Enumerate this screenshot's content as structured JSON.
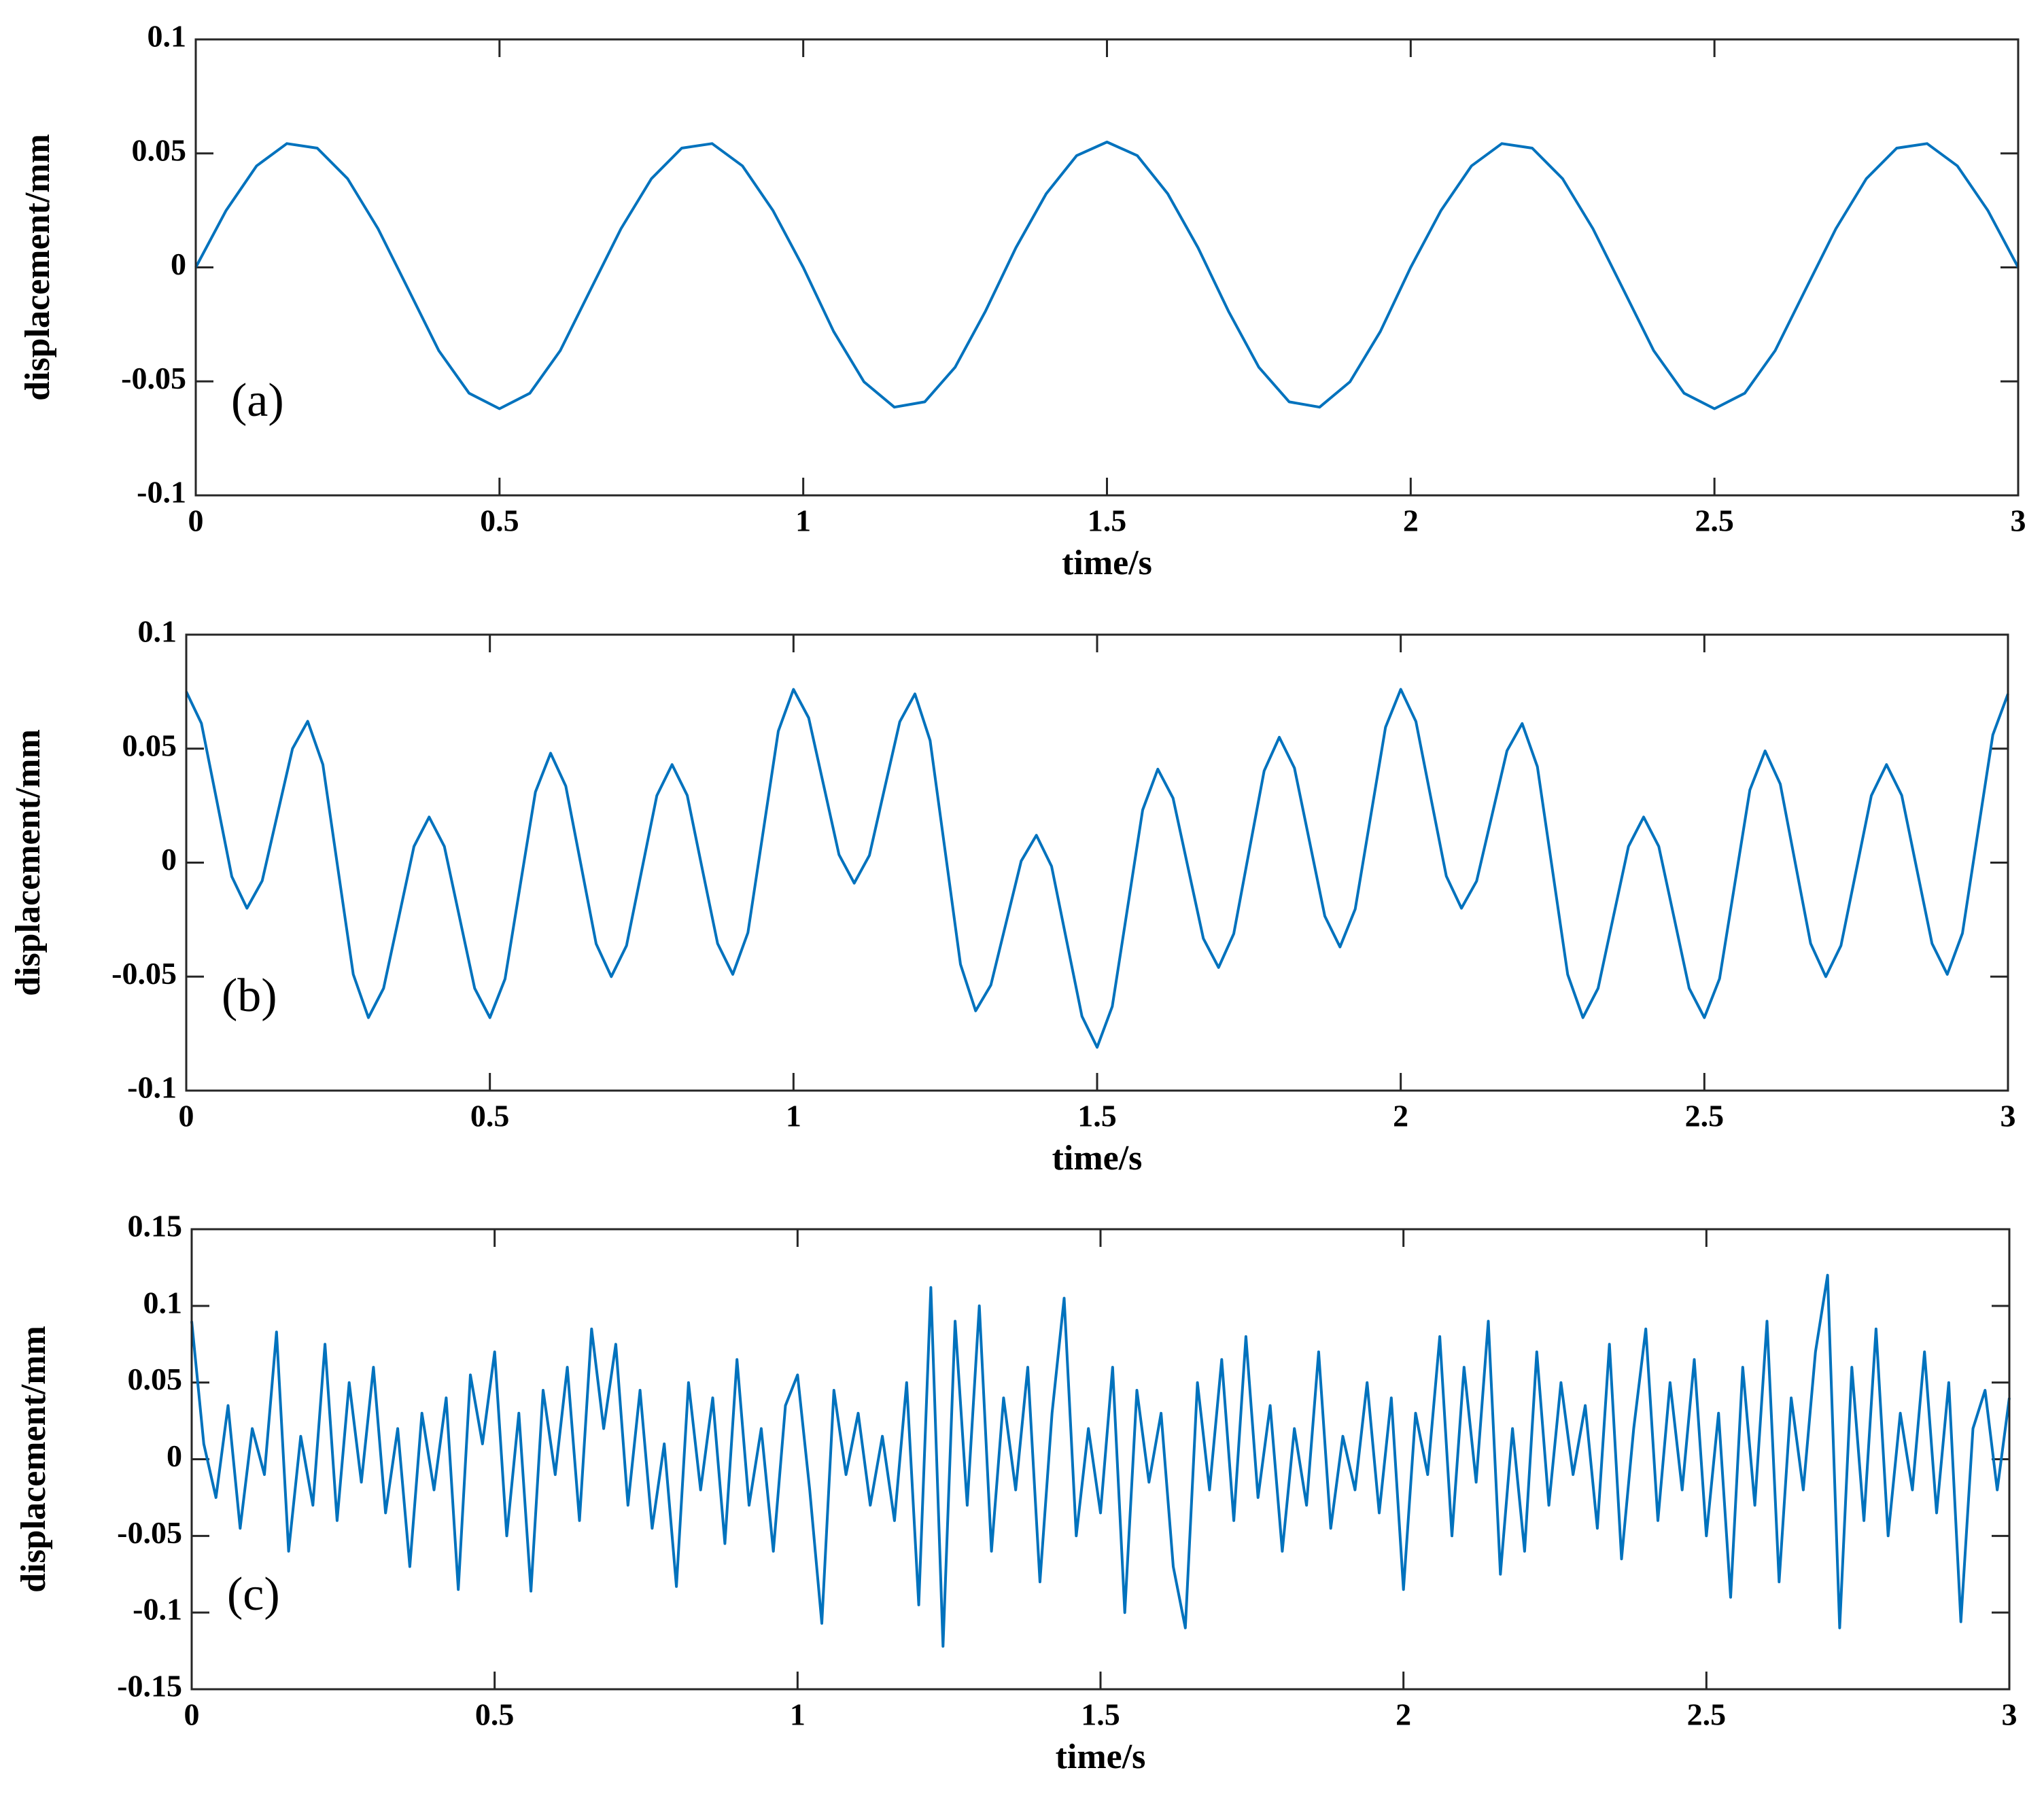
{
  "chart_data": [
    {
      "type": "line",
      "annotation": "(a)",
      "xlabel": "time/s",
      "ylabel": "displacement/mm",
      "color": "#0072bd",
      "xlim": [
        0,
        3
      ],
      "xticks": [
        0,
        0.5,
        1,
        1.5,
        2,
        2.5,
        3
      ],
      "ylim": [
        -0.1,
        0.1
      ],
      "yticks": [
        -0.1,
        -0.05,
        0,
        0.05,
        0.1
      ],
      "x": [
        0,
        0.05,
        0.1,
        0.15,
        0.2,
        0.25,
        0.3,
        0.35,
        0.4,
        0.45,
        0.5,
        0.55,
        0.6,
        0.65,
        0.7,
        0.75,
        0.8,
        0.85,
        0.9,
        0.95,
        1,
        1.05,
        1.1,
        1.15,
        1.2,
        1.25,
        1.3,
        1.35,
        1.4,
        1.45,
        1.5,
        1.55,
        1.6,
        1.65,
        1.7,
        1.75,
        1.8,
        1.85,
        1.9,
        1.95,
        2,
        2.05,
        2.1,
        2.15,
        2.2,
        2.25,
        2.3,
        2.35,
        2.4,
        2.45,
        2.5,
        2.55,
        2.6,
        2.65,
        2.7,
        2.75,
        2.8,
        2.85,
        2.9,
        2.95,
        3
      ],
      "values": [
        0,
        0.025,
        0.0445,
        0.0543,
        0.0523,
        0.0389,
        0.017,
        -0.0097,
        -0.0365,
        -0.0552,
        -0.062,
        -0.0552,
        -0.0365,
        -0.0097,
        0.017,
        0.0389,
        0.0523,
        0.0543,
        0.0445,
        0.025,
        0,
        -0.0281,
        -0.0502,
        -0.0613,
        -0.059,
        -0.0438,
        -0.0192,
        0.0086,
        0.0323,
        0.049,
        0.055,
        0.049,
        0.0323,
        0.0086,
        -0.0192,
        -0.0438,
        -0.059,
        -0.0613,
        -0.0502,
        -0.0281,
        0,
        0.025,
        0.0445,
        0.0543,
        0.0523,
        0.0389,
        0.017,
        -0.0097,
        -0.0365,
        -0.0552,
        -0.062,
        -0.0552,
        -0.0365,
        -0.0097,
        0.017,
        0.0389,
        0.0523,
        0.0543,
        0.0445,
        0.025,
        0
      ]
    },
    {
      "type": "line",
      "annotation": "(b)",
      "xlabel": "time/s",
      "ylabel": "displacement/mm",
      "color": "#0072bd",
      "xlim": [
        0,
        3
      ],
      "xticks": [
        0,
        0.5,
        1,
        1.5,
        2,
        2.5,
        3
      ],
      "ylim": [
        -0.1,
        0.1
      ],
      "yticks": [
        -0.1,
        -0.05,
        0,
        0.05,
        0.1
      ],
      "x": [
        0,
        0.025,
        0.05,
        0.075,
        0.1,
        0.125,
        0.15,
        0.175,
        0.2,
        0.225,
        0.25,
        0.275,
        0.3,
        0.325,
        0.35,
        0.375,
        0.4,
        0.425,
        0.45,
        0.475,
        0.5,
        0.525,
        0.55,
        0.575,
        0.6,
        0.625,
        0.65,
        0.675,
        0.7,
        0.725,
        0.75,
        0.775,
        0.8,
        0.825,
        0.85,
        0.875,
        0.9,
        0.925,
        0.95,
        0.975,
        1,
        1.025,
        1.05,
        1.075,
        1.1,
        1.125,
        1.15,
        1.175,
        1.2,
        1.225,
        1.25,
        1.275,
        1.3,
        1.325,
        1.35,
        1.375,
        1.4,
        1.425,
        1.45,
        1.475,
        1.5,
        1.525,
        1.55,
        1.575,
        1.6,
        1.625,
        1.65,
        1.675,
        1.7,
        1.725,
        1.75,
        1.775,
        1.8,
        1.825,
        1.85,
        1.875,
        1.9,
        1.925,
        1.95,
        1.975,
        2,
        2.025,
        2.05,
        2.075,
        2.1,
        2.125,
        2.15,
        2.175,
        2.2,
        2.225,
        2.25,
        2.275,
        2.3,
        2.325,
        2.35,
        2.375,
        2.4,
        2.425,
        2.45,
        2.475,
        2.5,
        2.525,
        2.55,
        2.575,
        2.6,
        2.625,
        2.65,
        2.675,
        2.7,
        2.725,
        2.75,
        2.775,
        2.8,
        2.825,
        2.85,
        2.875,
        2.9,
        2.925,
        2.95,
        2.975,
        3
      ],
      "values": [
        0.075,
        0.0611,
        0.0275,
        -0.0061,
        -0.02,
        -0.008,
        0.021,
        0.05,
        0.062,
        0.043,
        -0.003,
        -0.049,
        -0.068,
        -0.0551,
        -0.024,
        0.0071,
        0.02,
        0.0071,
        -0.024,
        -0.0551,
        -0.068,
        -0.051,
        -0.01,
        0.031,
        0.048,
        0.0336,
        -0.001,
        -0.0356,
        -0.05,
        -0.0364,
        -0.0035,
        0.0294,
        0.043,
        0.0295,
        -0.003,
        -0.0355,
        -0.049,
        -0.0307,
        0.0135,
        0.0577,
        0.076,
        0.0635,
        0.0335,
        0.0035,
        -0.009,
        0.0032,
        0.0325,
        0.0618,
        0.074,
        0.0536,
        0.0045,
        -0.0446,
        -0.065,
        -0.0537,
        -0.0265,
        0.0007,
        0.012,
        -0.0016,
        -0.0345,
        -0.0674,
        -0.081,
        -0.0631,
        -0.02,
        0.0231,
        0.041,
        0.0283,
        -0.0025,
        -0.0333,
        -0.046,
        -0.0312,
        0.0045,
        0.0402,
        0.055,
        0.0415,
        0.009,
        -0.0235,
        -0.037,
        -0.0204,
        0.0195,
        0.0594,
        0.076,
        0.0619,
        0.028,
        -0.0059,
        -0.02,
        -0.0081,
        0.0205,
        0.0491,
        0.061,
        0.0421,
        -0.0035,
        -0.0491,
        -0.068,
        -0.0551,
        -0.024,
        0.0071,
        0.02,
        0.0071,
        -0.024,
        -0.0551,
        -0.068,
        -0.0509,
        -0.0095,
        0.0319,
        0.049,
        0.0345,
        -0.0005,
        -0.0355,
        -0.05,
        -0.0364,
        -0.0035,
        0.0294,
        0.043,
        0.0295,
        -0.003,
        -0.0355,
        -0.049,
        -0.031,
        0.0125,
        0.056,
        0.074
      ]
    },
    {
      "type": "line",
      "annotation": "(c)",
      "xlabel": "time/s",
      "ylabel": "displacement/mm",
      "color": "#0072bd",
      "xlim": [
        0,
        3
      ],
      "xticks": [
        0,
        0.5,
        1,
        1.5,
        2,
        2.5,
        3
      ],
      "ylim": [
        -0.15,
        0.15
      ],
      "yticks": [
        -0.15,
        -0.1,
        -0.05,
        0,
        0.05,
        0.1,
        0.15
      ],
      "x": [
        0,
        0.02,
        0.04,
        0.06,
        0.08,
        0.1,
        0.12,
        0.14,
        0.16,
        0.18,
        0.2,
        0.22,
        0.24,
        0.26,
        0.28,
        0.3,
        0.32,
        0.34,
        0.36,
        0.38,
        0.4,
        0.42,
        0.44,
        0.46,
        0.48,
        0.5,
        0.52,
        0.54,
        0.56,
        0.58,
        0.6,
        0.62,
        0.64,
        0.66,
        0.68,
        0.7,
        0.72,
        0.74,
        0.76,
        0.78,
        0.8,
        0.82,
        0.84,
        0.86,
        0.88,
        0.9,
        0.92,
        0.94,
        0.96,
        0.98,
        1,
        1.02,
        1.04,
        1.06,
        1.08,
        1.1,
        1.12,
        1.14,
        1.16,
        1.18,
        1.2,
        1.22,
        1.24,
        1.26,
        1.28,
        1.3,
        1.32,
        1.34,
        1.36,
        1.38,
        1.4,
        1.42,
        1.44,
        1.46,
        1.48,
        1.5,
        1.52,
        1.54,
        1.56,
        1.58,
        1.6,
        1.62,
        1.64,
        1.66,
        1.68,
        1.7,
        1.72,
        1.74,
        1.76,
        1.78,
        1.8,
        1.82,
        1.84,
        1.86,
        1.88,
        1.9,
        1.92,
        1.94,
        1.96,
        1.98,
        2,
        2.02,
        2.04,
        2.06,
        2.08,
        2.1,
        2.12,
        2.14,
        2.16,
        2.18,
        2.2,
        2.22,
        2.24,
        2.26,
        2.28,
        2.3,
        2.32,
        2.34,
        2.36,
        2.38,
        2.4,
        2.42,
        2.44,
        2.46,
        2.48,
        2.5,
        2.52,
        2.54,
        2.56,
        2.58,
        2.6,
        2.62,
        2.64,
        2.66,
        2.68,
        2.7,
        2.72,
        2.74,
        2.76,
        2.78,
        2.8,
        2.82,
        2.84,
        2.86,
        2.88,
        2.9,
        2.92,
        2.94,
        2.96,
        2.98,
        3
      ],
      "values": [
        0.09,
        0.01,
        -0.025,
        0.035,
        -0.045,
        0.02,
        -0.01,
        0.083,
        -0.06,
        0.015,
        -0.03,
        0.075,
        -0.04,
        0.05,
        -0.015,
        0.06,
        -0.035,
        0.02,
        -0.07,
        0.03,
        -0.02,
        0.04,
        -0.085,
        0.055,
        0.01,
        0.07,
        -0.05,
        0.03,
        -0.086,
        0.045,
        -0.01,
        0.06,
        -0.04,
        0.085,
        0.02,
        0.075,
        -0.03,
        0.045,
        -0.045,
        0.01,
        -0.083,
        0.05,
        -0.02,
        0.04,
        -0.055,
        0.065,
        -0.03,
        0.02,
        -0.06,
        0.035,
        0.055,
        -0.02,
        -0.107,
        0.045,
        -0.01,
        0.03,
        -0.03,
        0.015,
        -0.04,
        0.05,
        -0.095,
        0.112,
        -0.122,
        0.09,
        -0.03,
        0.1,
        -0.06,
        0.04,
        -0.02,
        0.06,
        -0.08,
        0.03,
        0.105,
        -0.05,
        0.02,
        -0.035,
        0.06,
        -0.1,
        0.045,
        -0.015,
        0.03,
        -0.07,
        -0.11,
        0.05,
        -0.02,
        0.065,
        -0.04,
        0.08,
        -0.025,
        0.035,
        -0.06,
        0.02,
        -0.03,
        0.07,
        -0.045,
        0.015,
        -0.02,
        0.05,
        -0.035,
        0.04,
        -0.085,
        0.03,
        -0.01,
        0.08,
        -0.05,
        0.06,
        -0.015,
        0.09,
        -0.075,
        0.02,
        -0.06,
        0.07,
        -0.03,
        0.05,
        -0.01,
        0.035,
        -0.045,
        0.075,
        -0.065,
        0.02,
        0.085,
        -0.04,
        0.05,
        -0.02,
        0.065,
        -0.05,
        0.03,
        -0.09,
        0.06,
        -0.03,
        0.09,
        -0.08,
        0.04,
        -0.02,
        0.07,
        0.12,
        -0.11,
        0.06,
        -0.04,
        0.085,
        -0.05,
        0.03,
        -0.02,
        0.07,
        -0.035,
        0.05,
        -0.106,
        0.02,
        0.045,
        -0.02,
        0.04
      ]
    }
  ]
}
